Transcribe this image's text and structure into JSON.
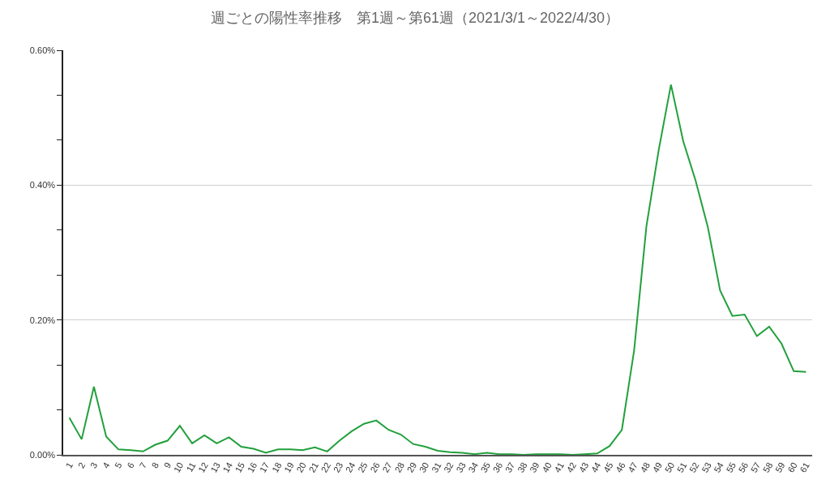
{
  "chart_data": {
    "type": "line",
    "title": "週ごとの陽性率推移　第1週～第61週（2021/3/1～2022/4/30）",
    "categories": [
      "1",
      "2",
      "3",
      "4",
      "5",
      "6",
      "7",
      "8",
      "9",
      "10",
      "11",
      "12",
      "13",
      "14",
      "15",
      "16",
      "17",
      "18",
      "19",
      "20",
      "21",
      "22",
      "23",
      "24",
      "25",
      "26",
      "27",
      "28",
      "29",
      "30",
      "31",
      "32",
      "33",
      "34",
      "35",
      "36",
      "37",
      "38",
      "39",
      "40",
      "41",
      "42",
      "43",
      "44",
      "45",
      "46",
      "47",
      "48",
      "49",
      "50",
      "51",
      "52",
      "53",
      "54",
      "55",
      "56",
      "57",
      "58",
      "59",
      "60",
      "61"
    ],
    "series": [
      {
        "color": "#22a03c",
        "values": [
          0.055,
          0.023,
          0.101,
          0.027,
          0.008,
          0.007,
          0.005,
          0.015,
          0.021,
          0.043,
          0.017,
          0.029,
          0.017,
          0.026,
          0.012,
          0.009,
          0.003,
          0.008,
          0.008,
          0.007,
          0.011,
          0.005,
          0.021,
          0.035,
          0.046,
          0.051,
          0.037,
          0.03,
          0.016,
          0.012,
          0.006,
          0.004,
          0.003,
          0.001,
          0.003,
          0.001,
          0.001,
          0,
          0.001,
          0.001,
          0.001,
          0,
          0.001,
          0.002,
          0.013,
          0.037,
          0.155,
          0.339,
          0.452,
          0.549,
          0.465,
          0.407,
          0.338,
          0.244,
          0.206,
          0.208,
          0.176,
          0.19,
          0.165,
          0.124,
          0.123
        ]
      }
    ],
    "ylim": [
      0,
      0.6
    ],
    "yticks": [
      {
        "value": 0,
        "label": "0.00%"
      },
      {
        "value": 0.0667,
        "label": null
      },
      {
        "value": 0.1333,
        "label": null
      },
      {
        "value": 0.2,
        "label": "0.20%"
      },
      {
        "value": 0.2667,
        "label": null
      },
      {
        "value": 0.3333,
        "label": null
      },
      {
        "value": 0.4,
        "label": "0.40%"
      },
      {
        "value": 0.4667,
        "label": null
      },
      {
        "value": 0.5333,
        "label": null
      },
      {
        "value": 0.6,
        "label": "0.60%"
      }
    ],
    "grid": "y",
    "marker": "none",
    "line_style": "solid"
  }
}
